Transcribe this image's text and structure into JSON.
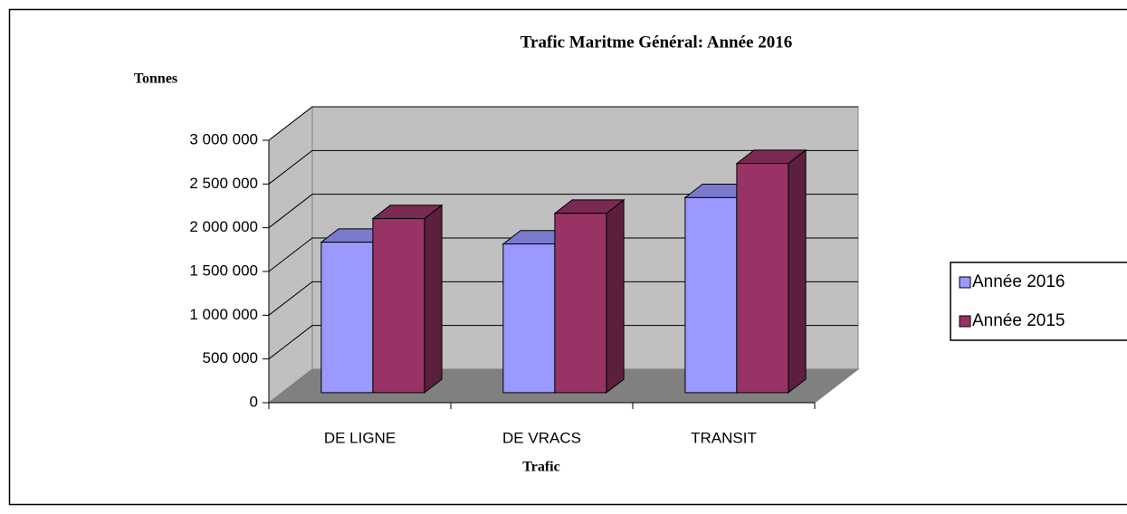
{
  "chart_data": {
    "type": "bar3d",
    "title": "Trafic Maritme Général: Année 2016",
    "y_label": "Tonnes",
    "x_label": "Trafic",
    "categories": [
      "DE LIGNE",
      "DE VRACS",
      "TRANSIT"
    ],
    "series": [
      {
        "name": "Année 2016",
        "color": "#9999ff",
        "values": [
          1720000,
          1700000,
          2230000
        ]
      },
      {
        "name": "Année 2015",
        "color": "#993366",
        "values": [
          1990000,
          2050000,
          2620000
        ]
      }
    ],
    "ylim": [
      0,
      3000000
    ],
    "yticks": [
      0,
      {
        "value": 500000,
        "label": "500 000"
      },
      {
        "value": 1000000,
        "label": "1 000 000"
      },
      {
        "value": 1500000,
        "label": "1 500 000"
      },
      {
        "value": 2000000,
        "label": "2 000 000"
      },
      {
        "value": 2500000,
        "label": "2 500 000"
      },
      {
        "value": 3000000,
        "label": "3 000 000"
      }
    ],
    "grid": true,
    "legend": "right"
  }
}
